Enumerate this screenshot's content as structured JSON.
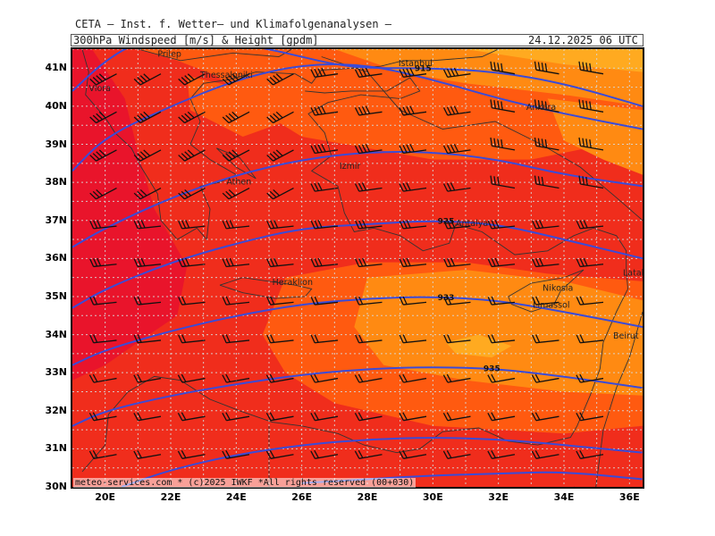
{
  "header": {
    "organization": "CETA – Inst. f. Wetter– und Klimafolgenanalysen –",
    "parameter": "300hPa Windspeed [m/s] & Height [gpdm]",
    "valid_time": "24.12.2025 06 UTC"
  },
  "footer": {
    "copyright": "meteo-services.com * (c)2025 IWKF *All rights reserved (00+030)"
  },
  "map": {
    "lon_range": [
      19.0,
      36.4
    ],
    "lat_range": [
      30.0,
      41.5
    ],
    "lat_ticks": [
      "41N",
      "40N",
      "39N",
      "38N",
      "37N",
      "36N",
      "35N",
      "34N",
      "33N",
      "32N",
      "31N",
      "30N"
    ],
    "lon_ticks": [
      "20E",
      "22E",
      "24E",
      "26E",
      "28E",
      "30E",
      "32E",
      "34E",
      "36E"
    ],
    "colors": {
      "windspeed_strong": "#e8122e",
      "windspeed_high": "#f02d1c",
      "windspeed_mid": "#ff5a10",
      "windspeed_low": "#ff8a12",
      "windspeed_lowest": "#ffaa20",
      "height_contour": "#3a4bd8",
      "grid": "#d8d8d8",
      "borders": "#333333"
    },
    "height_contours": [
      {
        "label": "915",
        "lat_at_lon": [
          [
            19,
            40.4
          ],
          [
            20,
            41.2
          ],
          [
            21,
            41.7
          ],
          [
            23,
            41.8
          ],
          [
            25,
            41.5
          ],
          [
            26,
            41.3
          ],
          [
            27,
            41.1
          ],
          [
            28,
            41.0
          ],
          [
            30,
            41.0
          ],
          [
            32,
            40.9
          ],
          [
            34,
            40.6
          ],
          [
            36.4,
            40.0
          ]
        ]
      },
      {
        "label": "",
        "lat_at_lon": [
          [
            19,
            38.3
          ],
          [
            20,
            39.2
          ],
          [
            22,
            40.0
          ],
          [
            24,
            40.7
          ],
          [
            26,
            41.1
          ],
          [
            28,
            41.1
          ],
          [
            30,
            40.7
          ],
          [
            32,
            40.2
          ],
          [
            34,
            39.8
          ],
          [
            36.4,
            39.4
          ]
        ]
      },
      {
        "label": "",
        "lat_at_lon": [
          [
            19,
            36.3
          ],
          [
            20,
            36.8
          ],
          [
            22,
            37.6
          ],
          [
            24,
            38.2
          ],
          [
            26,
            38.6
          ],
          [
            28,
            38.8
          ],
          [
            30,
            38.8
          ],
          [
            32,
            38.6
          ],
          [
            34,
            38.2
          ],
          [
            36.4,
            37.9
          ]
        ]
      },
      {
        "label": "925",
        "lat_at_lon": [
          [
            19,
            34.7
          ],
          [
            20,
            35.2
          ],
          [
            22,
            35.9
          ],
          [
            24,
            36.4
          ],
          [
            26,
            36.8
          ],
          [
            28,
            36.9
          ],
          [
            30,
            37.0
          ],
          [
            32,
            36.9
          ],
          [
            34,
            36.5
          ],
          [
            36.4,
            36.0
          ]
        ]
      },
      {
        "label": "933",
        "lat_at_lon": [
          [
            19,
            33.2
          ],
          [
            20,
            33.6
          ],
          [
            22,
            34.1
          ],
          [
            24,
            34.5
          ],
          [
            26,
            34.8
          ],
          [
            28,
            34.95
          ],
          [
            30,
            35.0
          ],
          [
            32,
            34.9
          ],
          [
            34,
            34.6
          ],
          [
            36.4,
            34.2
          ]
        ]
      },
      {
        "label": "935",
        "lat_at_lon": [
          [
            19,
            31.6
          ],
          [
            20,
            32.0
          ],
          [
            22,
            32.4
          ],
          [
            24,
            32.7
          ],
          [
            26,
            32.95
          ],
          [
            28,
            33.1
          ],
          [
            30,
            33.15
          ],
          [
            32,
            33.1
          ],
          [
            34,
            32.9
          ],
          [
            36.4,
            32.6
          ]
        ]
      },
      {
        "label": "",
        "lat_at_lon": [
          [
            20.5,
            30.0
          ],
          [
            22,
            30.45
          ],
          [
            24,
            30.85
          ],
          [
            26,
            31.1
          ],
          [
            28,
            31.25
          ],
          [
            30,
            31.3
          ],
          [
            32,
            31.25
          ],
          [
            34,
            31.1
          ],
          [
            36.4,
            30.9
          ]
        ]
      },
      {
        "label": "",
        "lat_at_lon": [
          [
            26,
            30.1
          ],
          [
            28,
            30.2
          ],
          [
            30,
            30.3
          ],
          [
            32,
            30.35
          ],
          [
            34,
            30.4
          ],
          [
            36.4,
            30.2
          ]
        ]
      }
    ],
    "cities": [
      {
        "name": "Prilep",
        "lon": 21.6,
        "lat": 41.3
      },
      {
        "name": "Thessaloniki",
        "lon": 22.9,
        "lat": 40.75
      },
      {
        "name": "Vlora",
        "lon": 19.5,
        "lat": 40.4
      },
      {
        "name": "Istanbul",
        "lon": 28.95,
        "lat": 41.05
      },
      {
        "name": "Ankara",
        "lon": 32.85,
        "lat": 39.9
      },
      {
        "name": "Izmir",
        "lon": 27.15,
        "lat": 38.35
      },
      {
        "name": "Athen",
        "lon": 23.7,
        "lat": 37.95
      },
      {
        "name": "Antalya",
        "lon": 30.7,
        "lat": 36.85
      },
      {
        "name": "Heraklion",
        "lon": 25.1,
        "lat": 35.3
      },
      {
        "name": "Nikosia",
        "lon": 33.35,
        "lat": 35.15
      },
      {
        "name": "Limassol",
        "lon": 33.05,
        "lat": 34.7
      },
      {
        "name": "Latakia",
        "lon": 35.8,
        "lat": 35.55
      },
      {
        "name": "Beirut",
        "lon": 35.5,
        "lat": 33.9
      }
    ]
  }
}
